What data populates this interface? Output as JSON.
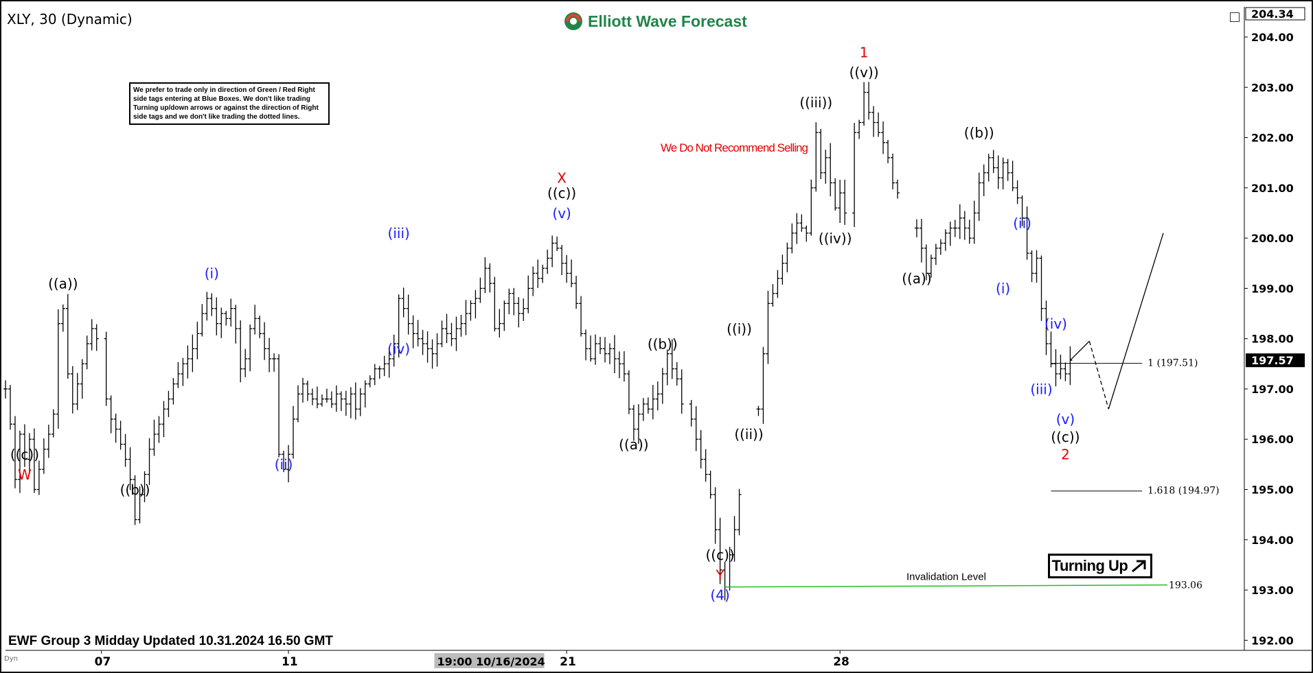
{
  "header": {
    "symbol_title": "XLY, 30 (Dynamic)",
    "logo_text": "Elliott Wave Forecast"
  },
  "disclaimer": "We prefer to trade only in direction of Green / Red Right side tags entering at Blue Boxes. We don't like trading Turning up/down arrows or against the direction of Right side tags and we don't like trading the dotted lines.",
  "recommendation": "We Do Not Recommend Selling",
  "footer": "EWF Group 3 Midday Updated 10.31.2024 16.50 GMT",
  "turning_label": "Turning Up",
  "invalidation": {
    "label": "Invalidation Level",
    "value": "193.06"
  },
  "status_dyn": "Dyn",
  "colors": {
    "red": "#e30000",
    "blue": "#1a1aff",
    "black": "#000000",
    "green": "#22c022",
    "logo": "#22844a"
  },
  "chart_data": {
    "type": "bar",
    "subtype": "ohlc",
    "ylim": [
      191.8,
      204.6
    ],
    "y_ticks": [
      "204.00",
      "203.00",
      "202.00",
      "201.00",
      "200.00",
      "199.00",
      "198.00",
      "197.00",
      "196.00",
      "195.00",
      "194.00",
      "193.00",
      "192.00"
    ],
    "price_top_label": "204.34",
    "price_current_label": "197.57",
    "price_current": 197.57,
    "x_labels": [
      {
        "t": 20,
        "text": "07"
      },
      {
        "t": 59,
        "text": "11"
      },
      {
        "t": 117,
        "text": "21"
      },
      {
        "t": 174,
        "text": "28"
      }
    ],
    "x_highlight": {
      "t": 90,
      "text": "19:00 10/16/2024"
    },
    "t_range": [
      0,
      248
    ],
    "price_path": [
      [
        0,
        197.0
      ],
      [
        1,
        196.3
      ],
      [
        2,
        195.2
      ],
      [
        3,
        196.1
      ],
      [
        4,
        195.6
      ],
      [
        5,
        196.0
      ],
      [
        6,
        195.0
      ],
      [
        7,
        195.4
      ],
      [
        8,
        195.8
      ],
      [
        9,
        196.1
      ],
      [
        10,
        196.5
      ],
      [
        11,
        198.3
      ],
      [
        12,
        198.6
      ],
      [
        13,
        197.3
      ],
      [
        14,
        196.7
      ],
      [
        15,
        197.1
      ],
      [
        16,
        197.5
      ],
      [
        17,
        197.9
      ],
      [
        18,
        198.2
      ],
      [
        19,
        198.0
      ],
      [
        21,
        196.8
      ],
      [
        22,
        196.4
      ],
      [
        23,
        196.2
      ],
      [
        24,
        195.9
      ],
      [
        25,
        195.6
      ],
      [
        26,
        195.2
      ],
      [
        27,
        194.4
      ],
      [
        28,
        194.9
      ],
      [
        29,
        195.3
      ],
      [
        30,
        195.8
      ],
      [
        31,
        196.1
      ],
      [
        32,
        196.3
      ],
      [
        33,
        196.6
      ],
      [
        34,
        196.8
      ],
      [
        35,
        197.1
      ],
      [
        36,
        197.3
      ],
      [
        37,
        197.5
      ],
      [
        38,
        197.6
      ],
      [
        39,
        197.8
      ],
      [
        40,
        198.1
      ],
      [
        41,
        198.5
      ],
      [
        42,
        198.8
      ],
      [
        43,
        198.6
      ],
      [
        44,
        198.3
      ],
      [
        45,
        198.5
      ],
      [
        46,
        198.4
      ],
      [
        47,
        198.6
      ],
      [
        48,
        198.2
      ],
      [
        49,
        197.4
      ],
      [
        50,
        197.6
      ],
      [
        51,
        198.2
      ],
      [
        52,
        198.4
      ],
      [
        53,
        198.1
      ],
      [
        54,
        197.8
      ],
      [
        55,
        197.6
      ],
      [
        56,
        197.6
      ],
      [
        57,
        195.7
      ],
      [
        58,
        195.4
      ],
      [
        59,
        195.7
      ],
      [
        60,
        196.4
      ],
      [
        61,
        196.9
      ],
      [
        62,
        197.1
      ],
      [
        63,
        196.9
      ],
      [
        64,
        196.8
      ],
      [
        65,
        196.7
      ],
      [
        66,
        196.8
      ],
      [
        67,
        196.8
      ],
      [
        68,
        196.7
      ],
      [
        69,
        196.9
      ],
      [
        70,
        196.8
      ],
      [
        71,
        196.7
      ],
      [
        72,
        196.9
      ],
      [
        73,
        196.6
      ],
      [
        74,
        196.9
      ],
      [
        75,
        197.1
      ],
      [
        76,
        197.2
      ],
      [
        77,
        197.4
      ],
      [
        78,
        197.4
      ],
      [
        79,
        197.5
      ],
      [
        80,
        197.6
      ],
      [
        81,
        197.9
      ],
      [
        82,
        198.8
      ],
      [
        83,
        198.6
      ],
      [
        84,
        198.3
      ],
      [
        85,
        198.1
      ],
      [
        86,
        198.0
      ],
      [
        87,
        197.9
      ],
      [
        88,
        197.8
      ],
      [
        89,
        197.7
      ],
      [
        90,
        197.9
      ],
      [
        91,
        198.2
      ],
      [
        92,
        198.1
      ],
      [
        93,
        198.0
      ],
      [
        94,
        198.2
      ],
      [
        95,
        198.3
      ],
      [
        96,
        198.5
      ],
      [
        97,
        198.7
      ],
      [
        98,
        198.8
      ],
      [
        99,
        199.0
      ],
      [
        100,
        199.4
      ],
      [
        101,
        199.1
      ],
      [
        102,
        198.2
      ],
      [
        103,
        198.3
      ],
      [
        104,
        198.7
      ],
      [
        105,
        198.9
      ],
      [
        106,
        198.7
      ],
      [
        107,
        198.5
      ],
      [
        108,
        198.6
      ],
      [
        109,
        199.0
      ],
      [
        110,
        199.3
      ],
      [
        111,
        199.2
      ],
      [
        112,
        199.4
      ],
      [
        113,
        199.6
      ],
      [
        114,
        199.9
      ],
      [
        115,
        199.8
      ],
      [
        116,
        199.5
      ],
      [
        117,
        199.3
      ],
      [
        118,
        199.1
      ],
      [
        119,
        198.7
      ],
      [
        120,
        198.1
      ],
      [
        121,
        197.8
      ],
      [
        122,
        197.6
      ],
      [
        123,
        197.9
      ],
      [
        124,
        197.8
      ],
      [
        125,
        197.7
      ],
      [
        126,
        197.8
      ],
      [
        127,
        197.6
      ],
      [
        128,
        197.5
      ],
      [
        129,
        197.3
      ],
      [
        130,
        196.6
      ],
      [
        131,
        196.2
      ],
      [
        132,
        196.5
      ],
      [
        133,
        196.7
      ],
      [
        134,
        196.6
      ],
      [
        135,
        196.8
      ],
      [
        136,
        196.9
      ],
      [
        137,
        197.3
      ],
      [
        138,
        197.7
      ],
      [
        139,
        197.4
      ],
      [
        140,
        197.2
      ],
      [
        141,
        196.7
      ],
      [
        143,
        196.4
      ],
      [
        144,
        196.0
      ],
      [
        145,
        195.6
      ],
      [
        146,
        195.3
      ],
      [
        147,
        194.9
      ],
      [
        148,
        194.2
      ],
      [
        149,
        193.4
      ],
      [
        150,
        193.06
      ],
      [
        151,
        193.7
      ],
      [
        152,
        194.2
      ],
      [
        153,
        194.9
      ],
      [
        157,
        196.6
      ],
      [
        158,
        197.7
      ],
      [
        159,
        198.7
      ],
      [
        160,
        198.9
      ],
      [
        161,
        199.2
      ],
      [
        162,
        199.5
      ],
      [
        163,
        199.8
      ],
      [
        164,
        200.1
      ],
      [
        165,
        200.3
      ],
      [
        166,
        200.2
      ],
      [
        167,
        200.1
      ],
      [
        168,
        201.0
      ],
      [
        169,
        202.1
      ],
      [
        170,
        201.3
      ],
      [
        171,
        201.6
      ],
      [
        172,
        201.1
      ],
      [
        173,
        200.6
      ],
      [
        174,
        200.9
      ],
      [
        175,
        200.5
      ],
      [
        177,
        202.1
      ],
      [
        178,
        202.3
      ],
      [
        179,
        202.9
      ],
      [
        180,
        202.5
      ],
      [
        181,
        202.3
      ],
      [
        182,
        202.1
      ],
      [
        183,
        201.9
      ],
      [
        184,
        201.6
      ],
      [
        185,
        201.1
      ],
      [
        186,
        200.9
      ],
      [
        190,
        200.2
      ],
      [
        191,
        199.8
      ],
      [
        192,
        199.3
      ],
      [
        193,
        199.6
      ],
      [
        194,
        199.8
      ],
      [
        195,
        199.9
      ],
      [
        196,
        200.1
      ],
      [
        197,
        200.2
      ],
      [
        198,
        200.2
      ],
      [
        199,
        200.4
      ],
      [
        200,
        200.2
      ],
      [
        201,
        200.0
      ],
      [
        202,
        200.5
      ],
      [
        203,
        201.1
      ],
      [
        204,
        201.3
      ],
      [
        205,
        201.6
      ],
      [
        206,
        201.4
      ],
      [
        207,
        201.2
      ],
      [
        208,
        201.5
      ],
      [
        209,
        201.3
      ],
      [
        210,
        201.0
      ],
      [
        211,
        200.8
      ],
      [
        212,
        200.4
      ],
      [
        213,
        199.7
      ],
      [
        214,
        199.3
      ],
      [
        215,
        199.6
      ],
      [
        216,
        198.6
      ],
      [
        217,
        197.9
      ],
      [
        218,
        197.5
      ],
      [
        219,
        197.3
      ],
      [
        220,
        197.4
      ],
      [
        221,
        197.3
      ],
      [
        222,
        197.57
      ]
    ],
    "projection_line": [
      [
        222,
        197.57
      ],
      [
        226,
        197.95
      ],
      [
        230,
        196.6
      ],
      [
        258,
        200.1
      ]
    ],
    "projection_dashed": [
      [
        226,
        197.95
      ],
      [
        230,
        196.6
      ]
    ],
    "fib_lines": [
      {
        "t0": 218,
        "t1": 237,
        "y": 197.51,
        "label": "1 (197.51)"
      },
      {
        "t0": 218,
        "t1": 237,
        "y": 194.97,
        "label": "1.618 (194.97)"
      }
    ],
    "invalidation_line": {
      "t0": 150,
      "t1": 248,
      "y": 193.06
    },
    "wave_labels": [
      {
        "t": 4,
        "y": 195.6,
        "text": "((c))",
        "color": "black"
      },
      {
        "t": 4,
        "y": 195.2,
        "text": "W",
        "color": "red"
      },
      {
        "t": 12,
        "y": 199.0,
        "text": "((a))",
        "color": "black"
      },
      {
        "t": 27,
        "y": 194.9,
        "text": "((b))",
        "color": "black"
      },
      {
        "t": 43,
        "y": 199.2,
        "text": "(i)",
        "color": "blue"
      },
      {
        "t": 58,
        "y": 195.4,
        "text": "(ii)",
        "color": "blue"
      },
      {
        "t": 82,
        "y": 200.0,
        "text": "(iii)",
        "color": "blue"
      },
      {
        "t": 82,
        "y": 197.7,
        "text": "(iv)",
        "color": "blue"
      },
      {
        "t": 116,
        "y": 200.4,
        "text": "(v)",
        "color": "blue"
      },
      {
        "t": 116,
        "y": 200.8,
        "text": "((c))",
        "color": "black"
      },
      {
        "t": 116,
        "y": 201.1,
        "text": "X",
        "color": "red"
      },
      {
        "t": 131,
        "y": 195.8,
        "text": "((a))",
        "color": "black"
      },
      {
        "t": 137,
        "y": 197.8,
        "text": "((b))",
        "color": "black"
      },
      {
        "t": 149,
        "y": 193.6,
        "text": "((c))",
        "color": "black"
      },
      {
        "t": 149,
        "y": 193.2,
        "text": "Y",
        "color": "red"
      },
      {
        "t": 149,
        "y": 192.8,
        "text": "(4)",
        "color": "blue"
      },
      {
        "t": 153,
        "y": 198.1,
        "text": "((i))",
        "color": "black"
      },
      {
        "t": 155,
        "y": 196.0,
        "text": "((ii))",
        "color": "black"
      },
      {
        "t": 169,
        "y": 202.6,
        "text": "((iii))",
        "color": "black"
      },
      {
        "t": 173,
        "y": 199.9,
        "text": "((iv))",
        "color": "black"
      },
      {
        "t": 179,
        "y": 203.2,
        "text": "((v))",
        "color": "black"
      },
      {
        "t": 179,
        "y": 203.6,
        "text": "1",
        "color": "red"
      },
      {
        "t": 190,
        "y": 199.1,
        "text": "((a))",
        "color": "black"
      },
      {
        "t": 203,
        "y": 202.0,
        "text": "((b))",
        "color": "black"
      },
      {
        "t": 208,
        "y": 198.9,
        "text": "(i)",
        "color": "blue"
      },
      {
        "t": 212,
        "y": 200.2,
        "text": "(ii)",
        "color": "blue"
      },
      {
        "t": 216,
        "y": 196.9,
        "text": "(iii)",
        "color": "blue"
      },
      {
        "t": 219,
        "y": 198.2,
        "text": "(iv)",
        "color": "blue"
      },
      {
        "t": 221,
        "y": 196.3,
        "text": "(v)",
        "color": "blue"
      },
      {
        "t": 221,
        "y": 195.95,
        "text": "((c))",
        "color": "black"
      },
      {
        "t": 221,
        "y": 195.6,
        "text": "2",
        "color": "red"
      }
    ]
  }
}
